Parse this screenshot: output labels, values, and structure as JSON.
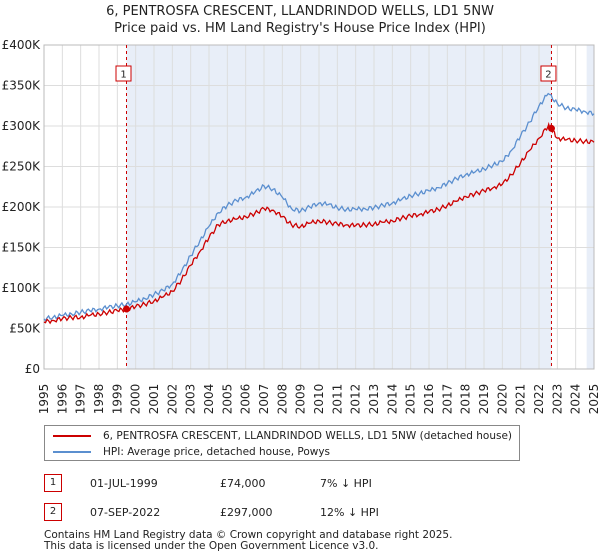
{
  "chart_data": {
    "type": "line",
    "title": "6, PENTROSFA CRESCENT, LLANDRINDOD WELLS, LD1 5NW",
    "subtitle": "Price paid vs. HM Land Registry's House Price Index (HPI)",
    "xlabel": "",
    "ylabel": "",
    "xlim": [
      1995,
      2025
    ],
    "ylim": [
      0,
      400000
    ],
    "yticks": [
      0,
      50000,
      100000,
      150000,
      200000,
      250000,
      300000,
      350000,
      400000
    ],
    "ytick_labels": [
      "£0",
      "£50K",
      "£100K",
      "£150K",
      "£200K",
      "£250K",
      "£300K",
      "£350K",
      "£400K"
    ],
    "xticks": [
      1995,
      1996,
      1997,
      1998,
      1999,
      2000,
      2001,
      2002,
      2003,
      2004,
      2005,
      2006,
      2007,
      2008,
      2009,
      2010,
      2011,
      2012,
      2013,
      2014,
      2015,
      2016,
      2017,
      2018,
      2019,
      2020,
      2021,
      2022,
      2023,
      2024,
      2025
    ],
    "xtick_labels": [
      "1995",
      "1996",
      "1997",
      "1998",
      "1999",
      "2000",
      "2001",
      "2002",
      "2003",
      "2004",
      "2005",
      "2006",
      "2007",
      "2008",
      "2009",
      "2010",
      "2011",
      "2012",
      "2013",
      "2014",
      "2015",
      "2016",
      "2017",
      "2018",
      "2019",
      "2020",
      "2021",
      "2022",
      "2023",
      "2024",
      "2025"
    ],
    "grid": true,
    "legend_position": "below",
    "series": [
      {
        "name": "6, PENTROSFA CRESCENT, LLANDRINDOD WELLS, LD1 5NW (detached house)",
        "color": "#cc0000",
        "x": [
          1995.0,
          1995.5,
          1996.0,
          1996.5,
          1997.0,
          1997.5,
          1998.0,
          1998.5,
          1999.0,
          1999.5,
          2000.0,
          2000.5,
          2001.0,
          2001.5,
          2002.0,
          2002.5,
          2003.0,
          2003.5,
          2004.0,
          2004.5,
          2005.0,
          2005.5,
          2006.0,
          2006.5,
          2007.0,
          2007.5,
          2008.0,
          2008.5,
          2009.0,
          2009.5,
          2010.0,
          2010.5,
          2011.0,
          2011.5,
          2012.0,
          2012.5,
          2013.0,
          2013.5,
          2014.0,
          2014.5,
          2015.0,
          2015.5,
          2016.0,
          2016.5,
          2017.0,
          2017.5,
          2018.0,
          2018.5,
          2019.0,
          2019.5,
          2020.0,
          2020.5,
          2021.0,
          2021.5,
          2022.0,
          2022.5,
          2022.68,
          2023.0,
          2023.5,
          2024.0,
          2024.5,
          2025.0
        ],
        "y": [
          58000,
          60000,
          62000,
          63500,
          64000,
          66000,
          68000,
          70000,
          72000,
          74000,
          77000,
          80000,
          84000,
          89000,
          96000,
          110000,
          128000,
          145000,
          162000,
          178000,
          183000,
          185000,
          188000,
          192000,
          198000,
          196000,
          188000,
          178000,
          176000,
          180000,
          183000,
          181000,
          179000,
          178000,
          177000,
          178000,
          179000,
          181000,
          183000,
          186000,
          189000,
          191000,
          194000,
          197000,
          202000,
          207000,
          213000,
          216000,
          220000,
          224000,
          228000,
          240000,
          255000,
          270000,
          285000,
          300000,
          297000,
          285000,
          283000,
          282000,
          281000,
          280000
        ]
      },
      {
        "name": "HPI: Average price, detached house, Powys",
        "color": "#5b8fcf",
        "x": [
          1995.0,
          1995.5,
          1996.0,
          1996.5,
          1997.0,
          1997.5,
          1998.0,
          1998.5,
          1999.0,
          1999.5,
          2000.0,
          2000.5,
          2001.0,
          2001.5,
          2002.0,
          2002.5,
          2003.0,
          2003.5,
          2004.0,
          2004.5,
          2005.0,
          2005.5,
          2006.0,
          2006.5,
          2007.0,
          2007.5,
          2008.0,
          2008.5,
          2009.0,
          2009.5,
          2010.0,
          2010.5,
          2011.0,
          2011.5,
          2012.0,
          2012.5,
          2013.0,
          2013.5,
          2014.0,
          2014.5,
          2015.0,
          2015.5,
          2016.0,
          2016.5,
          2017.0,
          2017.5,
          2018.0,
          2018.5,
          2019.0,
          2019.5,
          2020.0,
          2020.5,
          2021.0,
          2021.5,
          2022.0,
          2022.5,
          2023.0,
          2023.5,
          2024.0,
          2024.5,
          2025.0
        ],
        "y": [
          62000,
          64000,
          66000,
          68000,
          70000,
          72000,
          74000,
          76000,
          78000,
          80000,
          83000,
          87000,
          92000,
          97000,
          105000,
          120000,
          140000,
          158000,
          176000,
          193000,
          202000,
          208000,
          212000,
          218000,
          226000,
          222000,
          212000,
          198000,
          195000,
          200000,
          205000,
          203000,
          199000,
          197000,
          197000,
          198000,
          199000,
          202000,
          205000,
          209000,
          214000,
          217000,
          220000,
          224000,
          229000,
          235000,
          240000,
          243000,
          247000,
          252000,
          256000,
          270000,
          288000,
          305000,
          325000,
          340000,
          328000,
          322000,
          320000,
          318000,
          315000
        ]
      }
    ],
    "annotations": [
      {
        "label": "1",
        "x": 1999.5,
        "y": 74000
      },
      {
        "label": "2",
        "x": 2022.68,
        "y": 297000
      }
    ]
  },
  "legend": {
    "items": [
      {
        "label": "6, PENTROSFA CRESCENT, LLANDRINDOD WELLS, LD1 5NW (detached house)",
        "color": "#cc0000"
      },
      {
        "label": "HPI: Average price, detached house, Powys",
        "color": "#5b8fcf"
      }
    ]
  },
  "transactions": [
    {
      "num": "1",
      "date": "01-JUL-1999",
      "price": "£74,000",
      "hpi": "7% ↓ HPI"
    },
    {
      "num": "2",
      "date": "07-SEP-2022",
      "price": "£297,000",
      "hpi": "12% ↓ HPI"
    }
  ],
  "footer": {
    "line1": "Contains HM Land Registry data © Crown copyright and database right 2025.",
    "line2": "This data is licensed under the Open Government Licence v3.0."
  }
}
